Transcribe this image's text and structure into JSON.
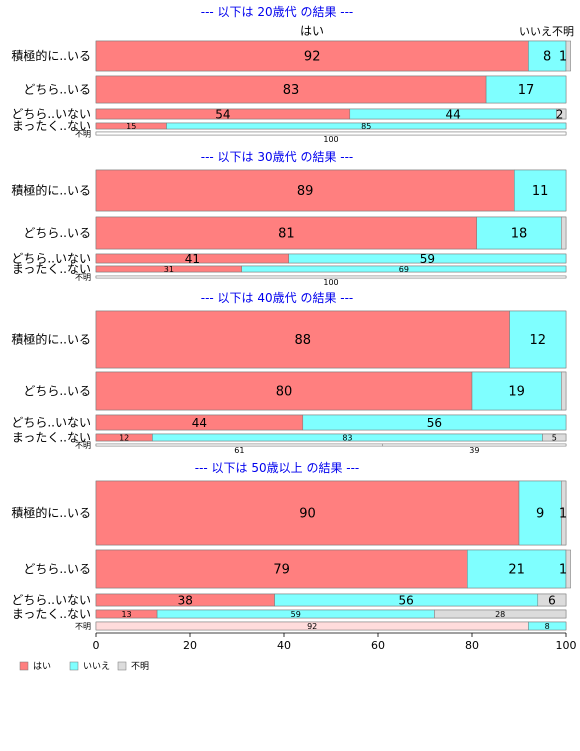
{
  "chart_data": {
    "type": "bar",
    "stacked": true,
    "orientation": "horizontal",
    "xlim": [
      0,
      100
    ],
    "x_ticks": [
      0,
      20,
      40,
      60,
      80,
      100
    ],
    "grid": false,
    "legend_position": "bottom-left",
    "series_names": [
      "はい",
      "いいえ",
      "不明"
    ],
    "colors": {
      "yes": "#FF7F7F",
      "no": "#7FFFFF",
      "unknown": "#DCDCDC",
      "unknown_row": "#FFDCDC",
      "title": "#0000EE",
      "frame": "#888888"
    },
    "top_header": {
      "yes": "はい",
      "no_unknown": "いいえ不明"
    },
    "panels": [
      {
        "title": "--- 以下は 20歳代 の結果 ---",
        "rows": [
          {
            "label": "積極的に..いる",
            "values": [
              92,
              8,
              1
            ],
            "labels": [
              "92",
              "8",
              "1"
            ]
          },
          {
            "label": "どちら..いる",
            "values": [
              83,
              17,
              0
            ],
            "labels": [
              "83",
              "17",
              ""
            ]
          },
          {
            "label": "どちら..いない",
            "values": [
              54,
              44,
              2
            ],
            "labels": [
              "54",
              "44",
              "2"
            ]
          },
          {
            "label": "まったく..ない",
            "values": [
              15,
              85,
              0
            ],
            "labels": [
              "15",
              "85",
              ""
            ]
          },
          {
            "label": "不明",
            "values": [
              100,
              0,
              0
            ],
            "labels": [
              "100",
              "",
              ""
            ]
          }
        ]
      },
      {
        "title": "--- 以下は 30歳代 の結果 ---",
        "rows": [
          {
            "label": "積極的に..いる",
            "values": [
              89,
              11,
              0
            ],
            "labels": [
              "89",
              "11",
              ""
            ]
          },
          {
            "label": "どちら..いる",
            "values": [
              81,
              18,
              1
            ],
            "labels": [
              "81",
              "18",
              ""
            ]
          },
          {
            "label": "どちら..いない",
            "values": [
              41,
              59,
              0
            ],
            "labels": [
              "41",
              "59",
              ""
            ]
          },
          {
            "label": "まったく..ない",
            "values": [
              31,
              69,
              0
            ],
            "labels": [
              "31",
              "69",
              ""
            ]
          },
          {
            "label": "不明",
            "values": [
              100,
              0,
              0
            ],
            "labels": [
              "100",
              "",
              ""
            ]
          }
        ]
      },
      {
        "title": "--- 以下は 40歳代 の結果 ---",
        "rows": [
          {
            "label": "積極的に..いる",
            "values": [
              88,
              12,
              0
            ],
            "labels": [
              "88",
              "12",
              ""
            ]
          },
          {
            "label": "どちら..いる",
            "values": [
              80,
              19,
              1
            ],
            "labels": [
              "80",
              "19",
              ""
            ]
          },
          {
            "label": "どちら..いない",
            "values": [
              44,
              56,
              0
            ],
            "labels": [
              "44",
              "56",
              ""
            ]
          },
          {
            "label": "まったく..ない",
            "values": [
              12,
              83,
              5
            ],
            "labels": [
              "12",
              "83",
              "5"
            ]
          },
          {
            "label": "不明",
            "values": [
              61,
              39,
              0
            ],
            "labels": [
              "61",
              "39",
              ""
            ]
          }
        ]
      },
      {
        "title": "--- 以下は 50歳以上 の結果 ---",
        "rows": [
          {
            "label": "積極的に..いる",
            "values": [
              90,
              9,
              1
            ],
            "labels": [
              "90",
              "9",
              "1"
            ]
          },
          {
            "label": "どちら..いる",
            "values": [
              79,
              21,
              1
            ],
            "labels": [
              "79",
              "21",
              "1"
            ]
          },
          {
            "label": "どちら..いない",
            "values": [
              38,
              56,
              6
            ],
            "labels": [
              "38",
              "56",
              "6"
            ]
          },
          {
            "label": "まったく..ない",
            "values": [
              13,
              59,
              28
            ],
            "labels": [
              "13",
              "59",
              "28"
            ]
          },
          {
            "label": "不明",
            "values": [
              92,
              8,
              0
            ],
            "labels": [
              "92",
              "8",
              ""
            ]
          }
        ]
      }
    ]
  }
}
